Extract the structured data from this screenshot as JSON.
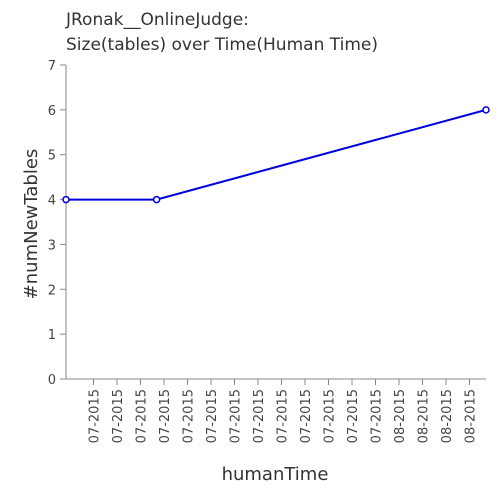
{
  "chart_data": {
    "type": "line",
    "title": "JRonak__OnlineJudge:",
    "subtitle": "Size(tables) over Time(Human Time)",
    "xlabel": "humanTime",
    "ylabel": "#numNewTables",
    "x_tick_labels": [
      "07-2015",
      "07-2015",
      "07-2015",
      "07-2015",
      "07-2015",
      "07-2015",
      "07-2015",
      "07-2015",
      "07-2015",
      "07-2015",
      "07-2015",
      "07-2015",
      "07-2015",
      "08-2015",
      "08-2015",
      "08-2015",
      "08-2015"
    ],
    "y_ticks": [
      0,
      1,
      2,
      3,
      4,
      5,
      6,
      7
    ],
    "ylim": [
      0,
      7
    ],
    "grid": false,
    "legend": "none",
    "series": [
      {
        "color": "#0000dd",
        "points": [
          {
            "x": "2015-06-28",
            "y": 4
          },
          {
            "x": "2015-07-09",
            "y": 4
          },
          {
            "x": "2015-08-18",
            "y": 6
          }
        ]
      }
    ]
  }
}
